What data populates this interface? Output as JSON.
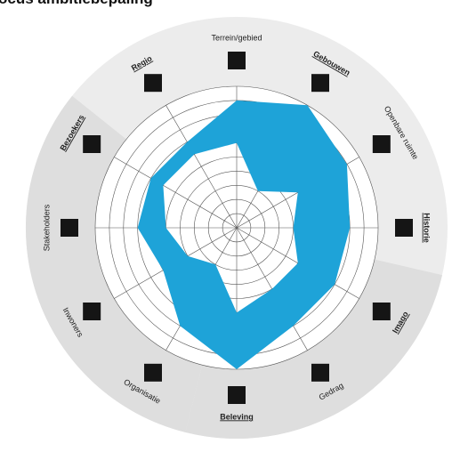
{
  "title": "ocus ambitiebepaling",
  "colors": {
    "fill": "#1ea3d8",
    "background_disc": "#ececec",
    "sector_gray": "#dedede",
    "square": "#151515",
    "grid": "#555555"
  },
  "chart_data": {
    "type": "radar",
    "title": "ocus ambitiebepaling",
    "rings": 10,
    "scale": [
      0,
      10
    ],
    "axes": [
      {
        "label": "Terrein/gebied",
        "bold": false
      },
      {
        "label": "Gebouwen",
        "bold": true
      },
      {
        "label": "Openbare ruimte",
        "bold": false
      },
      {
        "label": "Historie",
        "bold": true
      },
      {
        "label": "Imago",
        "bold": true
      },
      {
        "label": "Gedrag",
        "bold": false
      },
      {
        "label": "Beleving",
        "bold": true
      },
      {
        "label": "Organisatie",
        "bold": false
      },
      {
        "label": "Inwoners",
        "bold": false
      },
      {
        "label": "Stakeholders",
        "bold": false
      },
      {
        "label": "Bezoekers",
        "bold": true
      },
      {
        "label": "Regio",
        "bold": true
      }
    ],
    "outer": [
      9,
      10,
      9,
      8,
      8,
      8,
      10,
      8,
      6,
      7,
      7,
      7
    ],
    "inner": [
      6,
      3,
      5,
      4,
      5,
      5,
      6,
      3,
      4,
      5,
      6,
      6
    ]
  }
}
